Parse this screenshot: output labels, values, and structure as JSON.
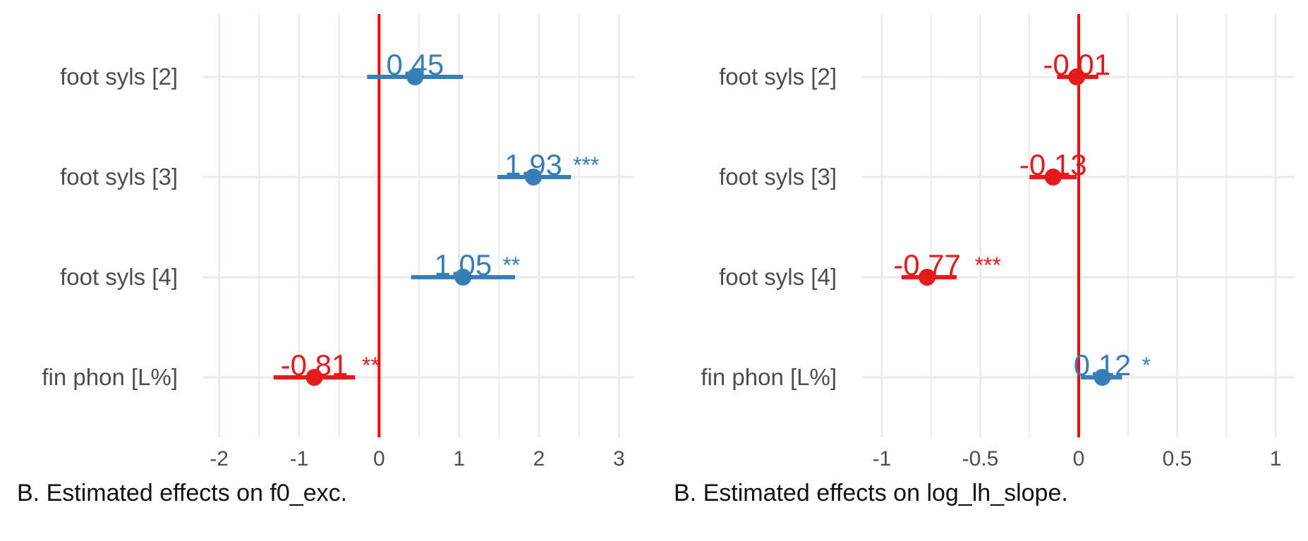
{
  "colors": {
    "positive": "#377EB8",
    "negative": "#E41A1C",
    "zero_line": "#FF0000",
    "grid": "#EBEBEB",
    "text": "#4D4D4D"
  },
  "chart_data": [
    {
      "type": "forest",
      "caption": "B. Estimated effects on f0_exc.",
      "xlim": [
        -2.2,
        3.2
      ],
      "xticks": [
        -2,
        -1,
        0,
        1,
        2,
        3
      ],
      "xtick_labels": [
        "-2",
        "-1",
        "0",
        "1",
        "2",
        "3"
      ],
      "grid": true,
      "terms": [
        "foot syls [2]",
        "foot syls [3]",
        "foot syls [4]",
        "fin phon [L%]"
      ],
      "estimates": [
        {
          "term": "foot syls [2]",
          "estimate": 0.45,
          "ci": [
            -0.15,
            1.05
          ],
          "label": "0.45",
          "sig": ""
        },
        {
          "term": "foot syls [3]",
          "estimate": 1.93,
          "ci": [
            1.48,
            2.4
          ],
          "label": "1.93",
          "sig": "***"
        },
        {
          "term": "foot syls [4]",
          "estimate": 1.05,
          "ci": [
            0.4,
            1.7
          ],
          "label": "1.05",
          "sig": "**"
        },
        {
          "term": "fin phon [L%]",
          "estimate": -0.81,
          "ci": [
            -1.32,
            -0.3
          ],
          "label": "-0.81",
          "sig": "**"
        }
      ]
    },
    {
      "type": "forest",
      "caption": "B. Estimated effects on log_lh_slope.",
      "xlim": [
        -1.1,
        1.1
      ],
      "xticks": [
        -1,
        -0.5,
        0,
        0.5,
        1
      ],
      "xtick_labels": [
        "-1",
        "-0.5",
        "0",
        "0.5",
        "1"
      ],
      "grid": true,
      "terms": [
        "foot syls [2]",
        "foot syls [3]",
        "foot syls [4]",
        "fin phon [L%]"
      ],
      "estimates": [
        {
          "term": "foot syls [2]",
          "estimate": -0.01,
          "ci": [
            -0.11,
            0.1
          ],
          "label": "-0.01",
          "sig": ""
        },
        {
          "term": "foot syls [3]",
          "estimate": -0.13,
          "ci": [
            -0.25,
            -0.01
          ],
          "label": "-0.13",
          "sig": ""
        },
        {
          "term": "foot syls [4]",
          "estimate": -0.77,
          "ci": [
            -0.9,
            -0.62
          ],
          "label": "-0.77",
          "sig": "***"
        },
        {
          "term": "fin phon [L%]",
          "estimate": 0.12,
          "ci": [
            0.01,
            0.22
          ],
          "label": "0.12",
          "sig": "*"
        }
      ]
    }
  ]
}
